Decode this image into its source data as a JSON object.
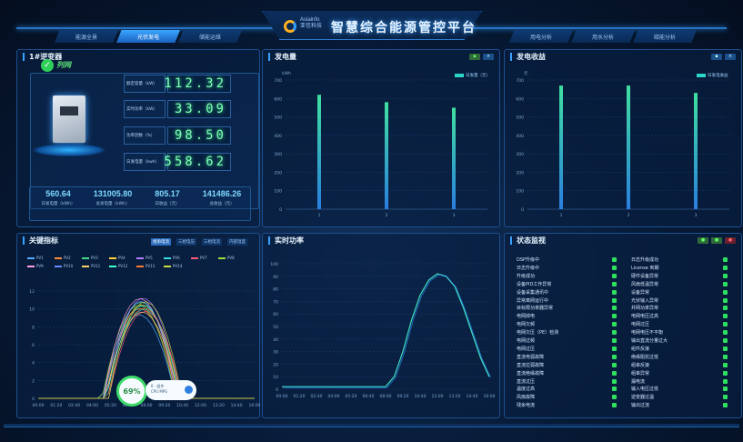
{
  "header": {
    "logo_text_1": "Asiainfo",
    "logo_text_2": "亚信科技",
    "title": "智慧综合能源管控平台",
    "left_tabs": [
      {
        "label": "能源全景",
        "active": false
      },
      {
        "label": "光伏发电",
        "active": true
      },
      {
        "label": "储能运维",
        "active": false
      }
    ],
    "right_tabs": [
      {
        "label": "用电分析",
        "active": false
      },
      {
        "label": "用水分析",
        "active": false
      },
      {
        "label": "碳能分析",
        "active": false
      }
    ]
  },
  "inverter": {
    "title": "1#逆变器",
    "status": "列网",
    "metrics": [
      {
        "label": "额定容量（kW）",
        "value": "112.32"
      },
      {
        "label": "实时功率（kW）",
        "value": "33.09"
      },
      {
        "label": "功率因数（%）",
        "value": "98.50"
      },
      {
        "label": "日发电量（kwh）",
        "value": "558.62"
      }
    ],
    "summary": [
      {
        "value": "560.64",
        "label": "日发电量（kWh）"
      },
      {
        "value": "131005.80",
        "label": "总发电量（kWh）"
      },
      {
        "value": "805.17",
        "label": "日收益（元）"
      },
      {
        "value": "141486.26",
        "label": "总收益（元）"
      }
    ]
  },
  "generation": {
    "title": "发电量",
    "chart_data": {
      "type": "bar",
      "ylabel": "kWh",
      "legend": "日发量（元）",
      "categories": [
        "1",
        "2",
        "3"
      ],
      "values": [
        620,
        580,
        550
      ],
      "ylim": [
        0,
        700
      ],
      "yticks": [
        "0",
        "100",
        "200",
        "300",
        "400",
        "500",
        "600",
        "700"
      ],
      "legend_position": "top-right"
    }
  },
  "revenue": {
    "title": "发电收益",
    "chart_data": {
      "type": "bar",
      "ylabel": "元",
      "legend": "日发电收益",
      "categories": [
        "1",
        "2",
        "3"
      ],
      "values": [
        670,
        670,
        630
      ],
      "ylim": [
        0,
        700
      ],
      "yticks": [
        "0",
        "100",
        "200",
        "300",
        "400",
        "500",
        "600",
        "700"
      ],
      "legend_position": "top-right"
    }
  },
  "key_indicators": {
    "title": "关键指标",
    "tabs": [
      {
        "label": "组串电流",
        "active": true
      },
      {
        "label": "三相电压",
        "active": false
      },
      {
        "label": "三相电流",
        "active": false
      },
      {
        "label": "内部温度",
        "active": false
      }
    ],
    "legend": [
      "PV1",
      "PV2",
      "PV3",
      "PV4",
      "PV5",
      "PV6",
      "PV7",
      "PV8",
      "PV9",
      "PV10",
      "PV11",
      "PV12",
      "PV13",
      "PV14"
    ],
    "legend_colors": [
      "#5aa8ff",
      "#ff8a3a",
      "#3fdc8a",
      "#ffd23a",
      "#b07cff",
      "#33e0e0",
      "#ff5a7a",
      "#9adf3a",
      "#ffa0e0",
      "#6a8aff",
      "#ffcc66",
      "#44ffcc",
      "#ff7733",
      "#ccdd44"
    ],
    "yticks": [
      "0",
      "2",
      "4",
      "6",
      "8",
      "10",
      "12"
    ],
    "xticks": [
      "00:00",
      "01:20",
      "02:40",
      "04:00",
      "05:20",
      "06:40",
      "08:00",
      "09:20",
      "10:40",
      "12:00",
      "13:20",
      "14:40",
      "16:00"
    ],
    "gauge_value": "69%",
    "gauge_card_line1": "6 · 组件",
    "gauge_card_line2": "CPU MPS"
  },
  "realtime_power": {
    "title": "实时功率",
    "chart_data": {
      "type": "line",
      "xticks": [
        "00:00",
        "01:20",
        "02:40",
        "04:00",
        "05:20",
        "06:40",
        "08:00",
        "09:20",
        "10:40",
        "12:00",
        "13:20",
        "14:40",
        "16:00"
      ],
      "yticks": [
        "0",
        "10",
        "20",
        "30",
        "40",
        "50",
        "60",
        "70",
        "80",
        "90",
        "100"
      ],
      "ylim": [
        0,
        100
      ],
      "x": [
        0,
        1,
        2,
        3,
        4,
        5,
        6,
        6.5,
        7,
        7.5,
        8,
        8.5,
        9,
        9.5,
        10,
        10.5,
        11,
        11.5,
        12
      ],
      "values": [
        2,
        2,
        2,
        2,
        2,
        2,
        2,
        10,
        30,
        55,
        75,
        87,
        92,
        90,
        82,
        65,
        45,
        25,
        10
      ]
    }
  },
  "status_monitor": {
    "title": "状态监视",
    "left_items": [
      "DSP升级中",
      "日志升级中",
      "升级成功",
      "设备PID工作异常",
      "设备采集通讯中",
      "异常离网运行中",
      "目标限功率器异常",
      "电网掉电",
      "电网欠频",
      "电网欠压（PE）检测",
      "电网过频",
      "电网过压",
      "直流电弧故障",
      "直流拉弧故障",
      "直流绝缘故障",
      "直流过压",
      "温度过高",
      "风扇故障",
      "残余电流"
    ],
    "right_items": [
      "日志升级成功",
      "License 到期",
      "硬件设备异常",
      "风扇低温异常",
      "设备异常",
      "光伏输入异常",
      "并网功率异常",
      "电网电压过高",
      "电网过压",
      "电网电压不平衡",
      "输出直流分量过大",
      "组件反接",
      "绝缘阻抗过低",
      "组串反接",
      "组串异常",
      "漏电流",
      "输入电压过低",
      "逆变器过温",
      "输出过流"
    ]
  }
}
